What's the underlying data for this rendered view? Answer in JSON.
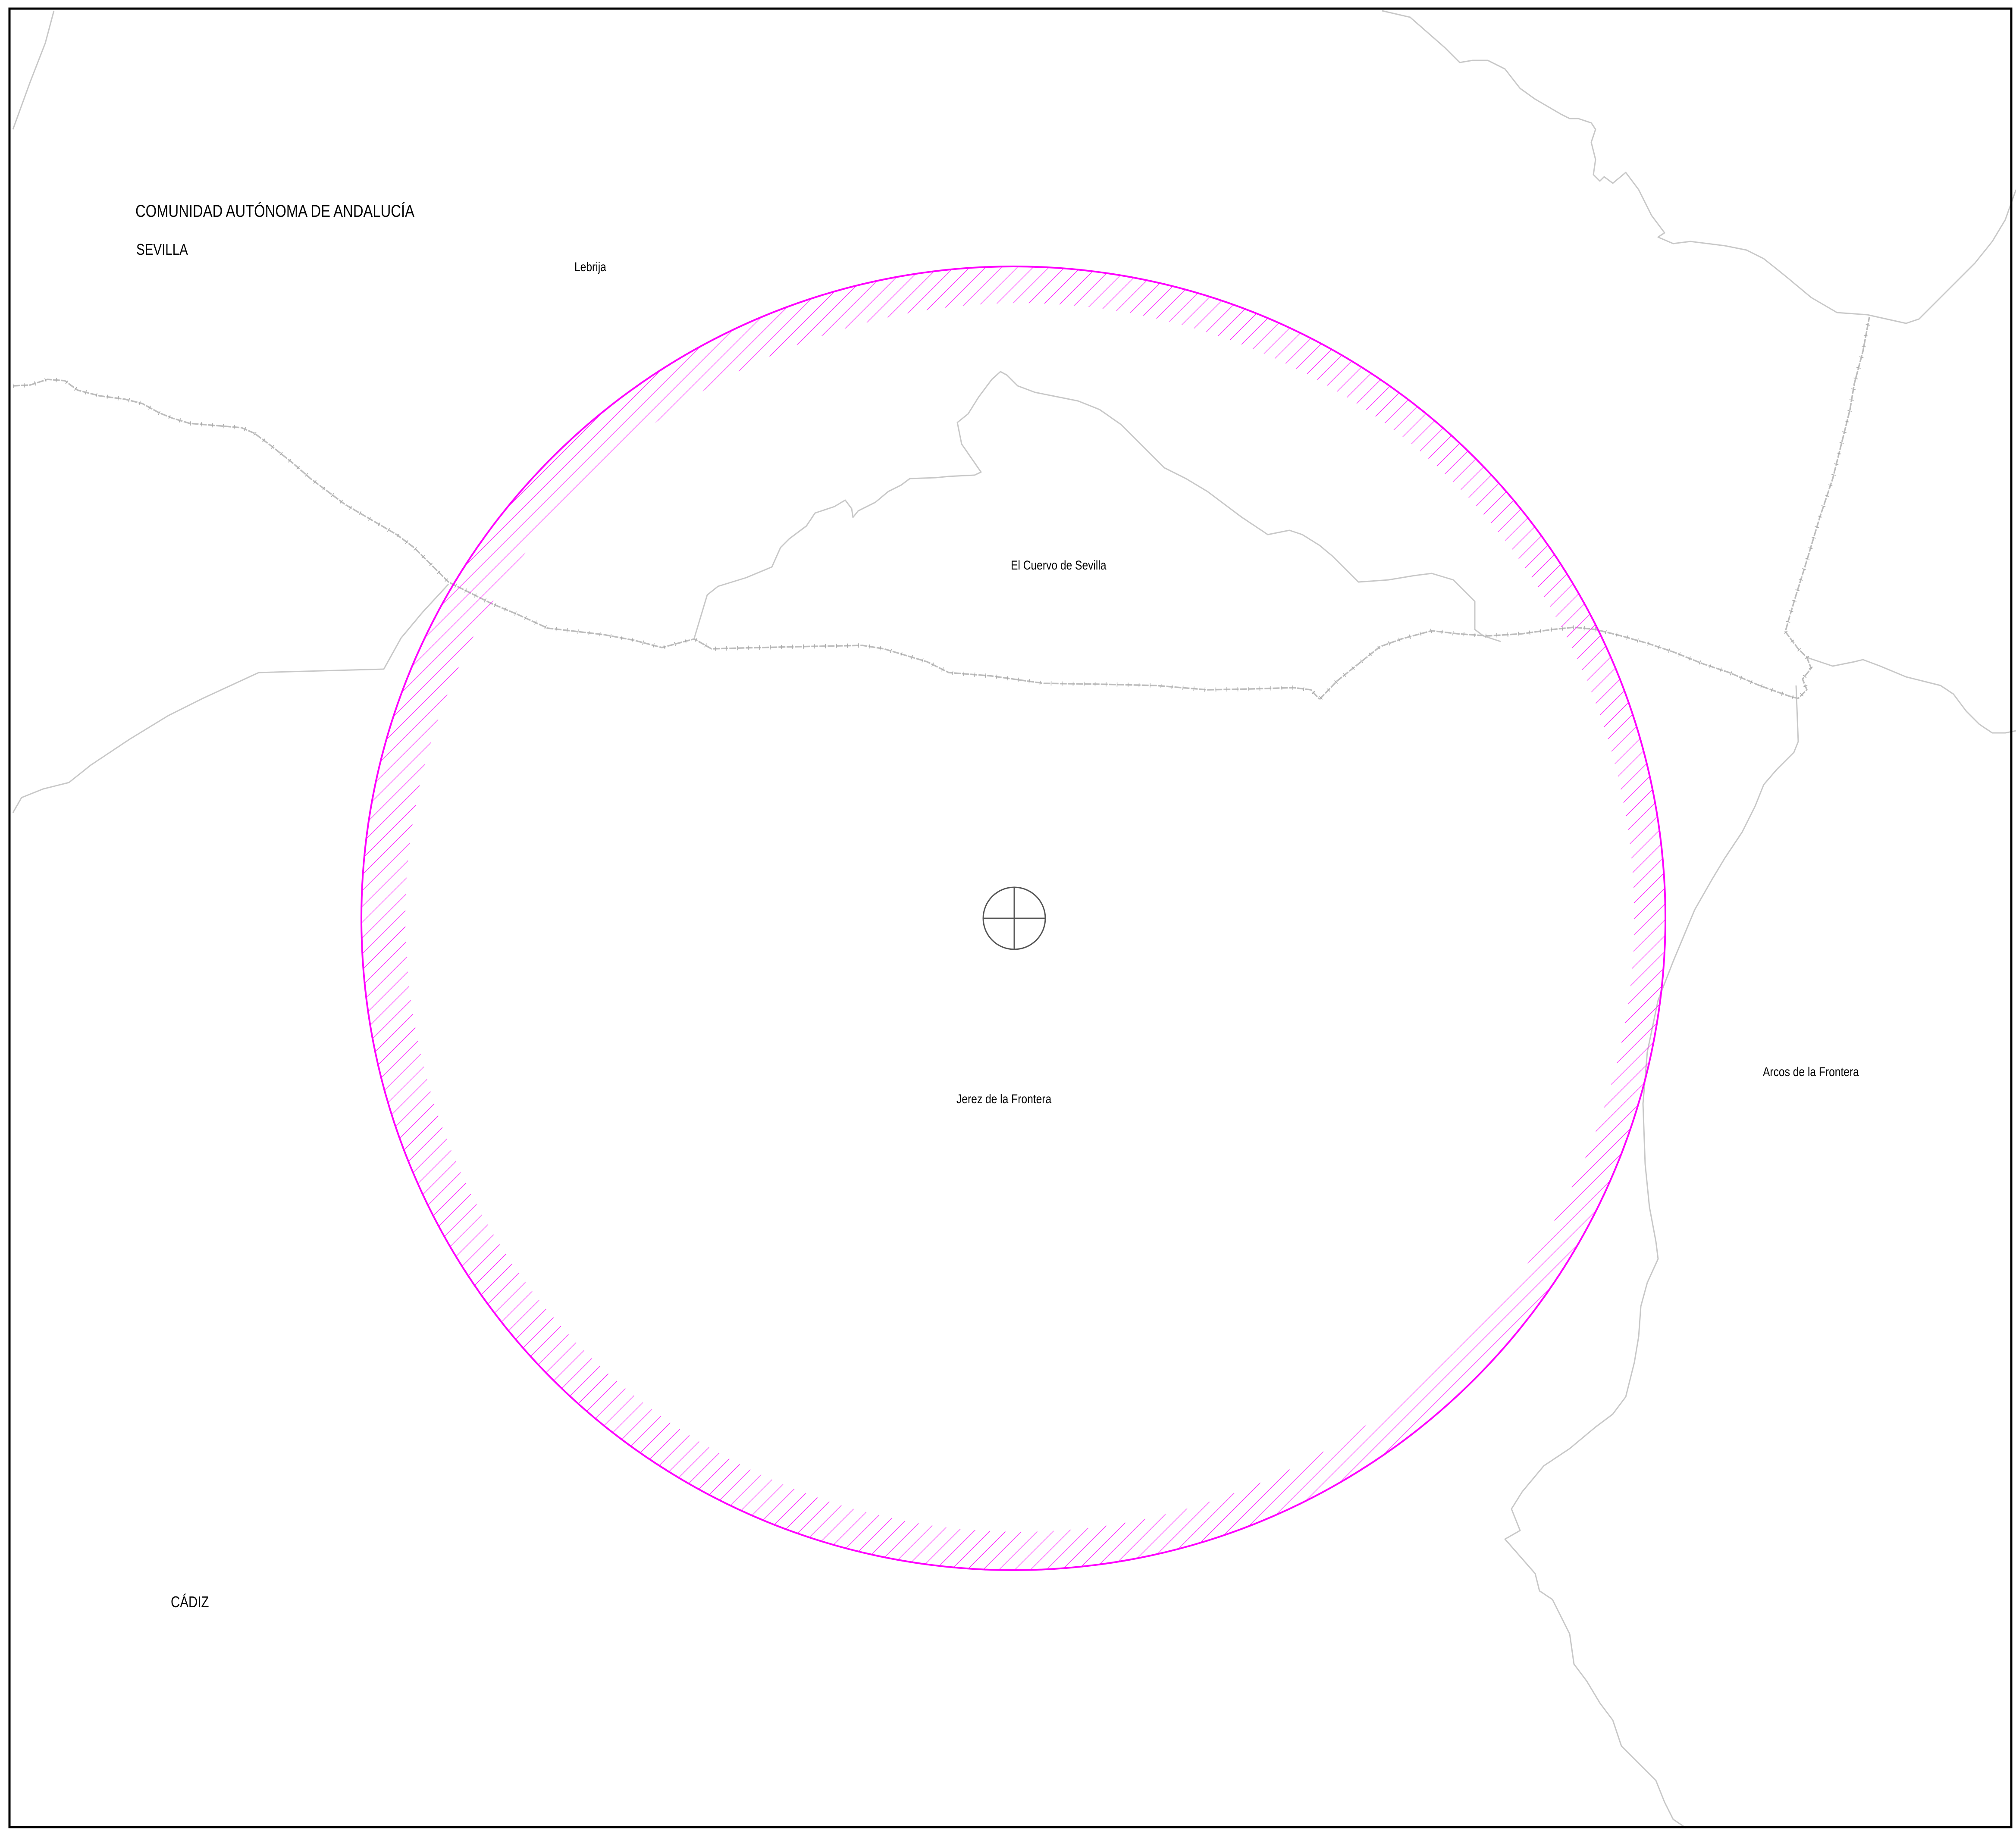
{
  "map": {
    "region_label": "COMUNIDAD AUTÓNOMA DE ANDALUCÍA",
    "provinces": {
      "sevilla": "SEVILLA",
      "cadiz": "CÁDIZ"
    },
    "towns": {
      "lebrija": "Lebrija",
      "el_cuervo": "El Cuervo de Sevilla",
      "jerez": "Jerez de la Frontera",
      "arcos": "Arcos de la Frontera"
    },
    "colors": {
      "buffer_ring": "#ff00ff",
      "boundaries": "#c8c8c8",
      "frame": "#000000",
      "background": "#ffffff"
    },
    "symbols": {
      "center_marker": "crosshair-circle-icon",
      "buffer": "hatched-circular-buffer",
      "boundary_line": "province-boundary-line"
    }
  }
}
